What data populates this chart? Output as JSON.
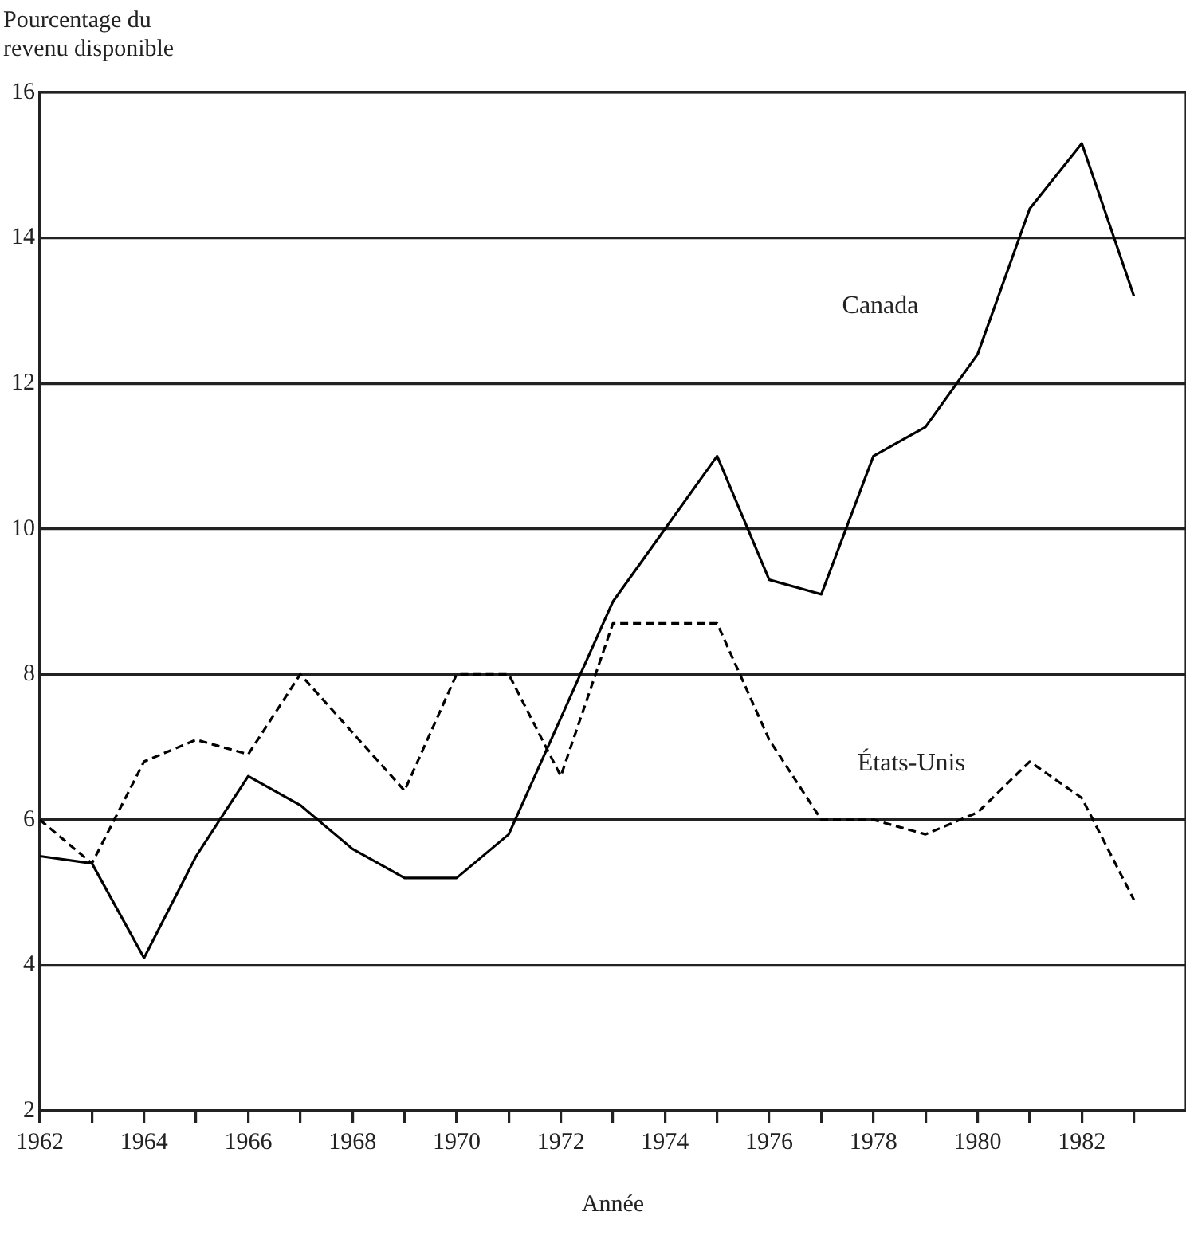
{
  "chart_data": {
    "type": "line",
    "ylabel": "Pourcentage du revenu disponible",
    "xlabel": "Année",
    "x": [
      1962,
      1963,
      1964,
      1965,
      1966,
      1967,
      1968,
      1969,
      1970,
      1971,
      1972,
      1973,
      1974,
      1975,
      1976,
      1977,
      1978,
      1979,
      1980,
      1981,
      1982,
      1983
    ],
    "series": [
      {
        "name": "Canada",
        "color": "#000000",
        "line_style": "solid",
        "values": [
          5.5,
          5.4,
          4.1,
          5.5,
          6.6,
          6.2,
          5.6,
          5.2,
          5.2,
          5.8,
          7.4,
          9.0,
          10.0,
          11.0,
          9.3,
          9.1,
          11.0,
          11.4,
          12.4,
          14.4,
          15.3,
          13.2
        ]
      },
      {
        "name": "États-Unis",
        "color": "#000000",
        "line_style": "dashed",
        "values": [
          6.0,
          5.4,
          6.8,
          7.1,
          6.9,
          8.0,
          7.2,
          6.4,
          8.0,
          8.0,
          6.6,
          8.7,
          8.7,
          8.7,
          7.1,
          6.0,
          6.0,
          5.8,
          6.1,
          6.8,
          6.3,
          4.9
        ]
      }
    ],
    "xlim": [
      1962,
      1984
    ],
    "xticks": [
      1962,
      {
        "value": 1963,
        "label": null
      },
      1964,
      {
        "value": 1965,
        "label": null
      },
      1966,
      {
        "value": 1967,
        "label": null
      },
      1968,
      {
        "value": 1969,
        "label": null
      },
      1970,
      {
        "value": 1971,
        "label": null
      },
      1972,
      {
        "value": 1973,
        "label": null
      },
      1974,
      {
        "value": 1975,
        "label": null
      },
      1976,
      {
        "value": 1977,
        "label": null
      },
      1978,
      {
        "value": 1979,
        "label": null
      },
      1980,
      {
        "value": 1981,
        "label": null
      },
      1982,
      {
        "value": 1983,
        "label": null
      }
    ],
    "ylim": [
      2,
      16
    ],
    "yticks": [
      2,
      4,
      6,
      8,
      10,
      12,
      14,
      16
    ],
    "grid": "y",
    "legend": false,
    "marker": "none"
  }
}
